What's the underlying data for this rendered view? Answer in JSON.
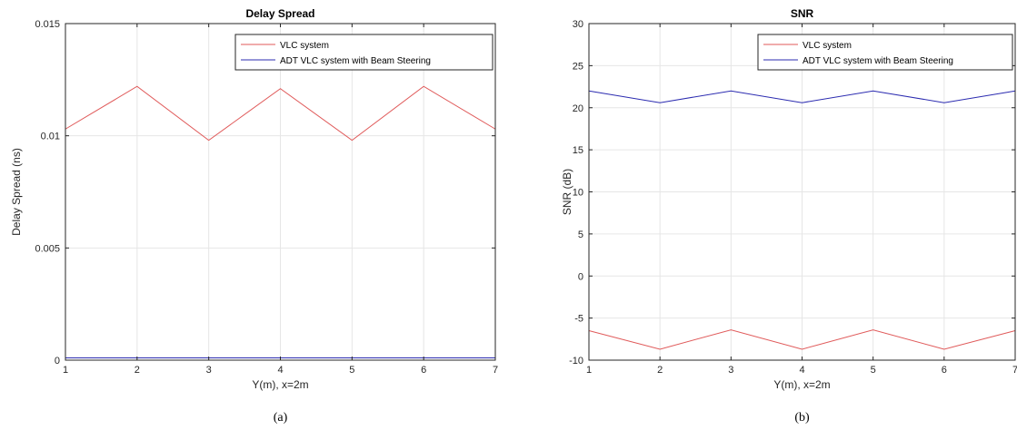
{
  "chart_data": [
    {
      "type": "line",
      "title": "Delay Spread",
      "xlabel": "Y(m), x=2m",
      "ylabel": "Delay Spread (ns)",
      "x": [
        1,
        2,
        3,
        4,
        5,
        6,
        7
      ],
      "xlim": [
        1,
        7
      ],
      "ylim": [
        0,
        0.015
      ],
      "xticks": [
        1,
        2,
        3,
        4,
        5,
        6,
        7
      ],
      "yticks": [
        0,
        0.005,
        0.01,
        0.015
      ],
      "ytick_labels": [
        "0",
        "0.005",
        "0.01",
        "0.015"
      ],
      "grid": true,
      "legend_position": "top-right",
      "caption": "(a)",
      "series": [
        {
          "name": "VLC system",
          "color": "#e05a5a",
          "values": [
            0.0103,
            0.0122,
            0.0098,
            0.0121,
            0.0098,
            0.0122,
            0.0103
          ]
        },
        {
          "name": "ADT VLC system with Beam Steering",
          "color": "#2b2bb0",
          "values": [
            0.0001,
            0.0001,
            0.0001,
            0.0001,
            0.0001,
            0.0001,
            0.0001
          ]
        }
      ]
    },
    {
      "type": "line",
      "title": "SNR",
      "xlabel": "Y(m), x=2m",
      "ylabel": "SNR (dB)",
      "x": [
        1,
        2,
        3,
        4,
        5,
        6,
        7
      ],
      "xlim": [
        1,
        7
      ],
      "ylim": [
        -10,
        30
      ],
      "xticks": [
        1,
        2,
        3,
        4,
        5,
        6,
        7
      ],
      "yticks": [
        -10,
        -5,
        0,
        5,
        10,
        15,
        20,
        25,
        30
      ],
      "ytick_labels": [
        "-10",
        "-5",
        "0",
        "5",
        "10",
        "15",
        "20",
        "25",
        "30"
      ],
      "grid": true,
      "legend_position": "top-right",
      "caption": "(b)",
      "series": [
        {
          "name": "VLC system",
          "color": "#e05a5a",
          "values": [
            -6.5,
            -8.7,
            -6.4,
            -8.7,
            -6.4,
            -8.7,
            -6.5
          ]
        },
        {
          "name": "ADT VLC system with Beam Steering",
          "color": "#2b2bb0",
          "values": [
            22.0,
            20.6,
            22.0,
            20.6,
            22.0,
            20.6,
            22.0
          ]
        }
      ]
    }
  ]
}
